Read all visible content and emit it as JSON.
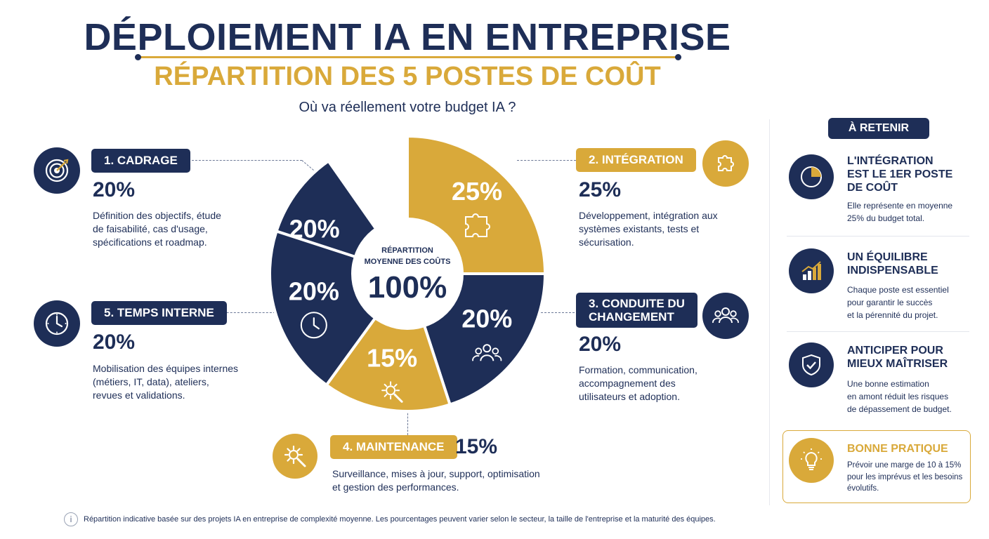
{
  "header": {
    "title": "DÉPLOIEMENT IA EN ENTREPRISE",
    "subtitle": "RÉPARTITION DES 5 POSTES DE COÛT",
    "question": "Où va réellement votre budget IA ?"
  },
  "colors": {
    "navy": "#1e2e57",
    "gold": "#d9a93a"
  },
  "pie_center": {
    "line1": "RÉPARTITION",
    "line2": "MOYENNE DES COÛTS",
    "total": "100%"
  },
  "chart_data": {
    "type": "pie",
    "categories": [
      "1. CADRAGE",
      "2. INTÉGRATION",
      "3. CONDUITE DU CHANGEMENT",
      "4. MAINTENANCE",
      "5. TEMPS INTERNE"
    ],
    "values": [
      20,
      25,
      20,
      15,
      20
    ],
    "colors": [
      "#1e2e57",
      "#d9a93a",
      "#1e2e57",
      "#d9a93a",
      "#1e2e57"
    ],
    "icons": [
      "target-icon",
      "puzzle-icon",
      "people-icon",
      "gear-wrench-icon",
      "clock-icon"
    ],
    "labels": [
      "20%",
      "25%",
      "20%",
      "15%",
      "20%"
    ]
  },
  "cards": [
    {
      "label": "1. CADRAGE",
      "pct": "20%",
      "desc": [
        "Définition des objectifs, étude",
        "de faisabilité, cas d'usage,",
        "spécifications et roadmap."
      ],
      "icon": "target-icon"
    },
    {
      "label": "2. INTÉGRATION",
      "pct": "25%",
      "desc": [
        "Développement, intégration aux",
        "systèmes existants, tests et",
        "sécurisation."
      ],
      "icon": "puzzle-icon"
    },
    {
      "label": [
        "3. CONDUITE DU",
        "CHANGEMENT"
      ],
      "pct": "20%",
      "desc": [
        "Formation, communication,",
        "accompagnement des",
        "utilisateurs et adoption."
      ],
      "icon": "people-icon"
    },
    {
      "label": "4. MAINTENANCE",
      "pct": "15%",
      "desc": [
        "Surveillance, mises à jour, support, optimisation",
        "et gestion des performances."
      ],
      "icon": "gear-wrench-icon"
    },
    {
      "label": "5. TEMPS INTERNE",
      "pct": "20%",
      "desc": [
        "Mobilisation des équipes internes",
        "(métiers, IT, data), ateliers,",
        "revues et validations."
      ],
      "icon": "clock-icon"
    }
  ],
  "retenir": {
    "badge": "À RETENIR",
    "items": [
      {
        "title": [
          "L'INTÉGRATION",
          "EST LE 1ER POSTE",
          "DE COÛT"
        ],
        "text": [
          "Elle représente en moyenne",
          "25% du budget total."
        ],
        "icon": "pie-chart-icon"
      },
      {
        "title": [
          "UN ÉQUILIBRE",
          "INDISPENSABLE"
        ],
        "text": [
          "Chaque poste est essentiel",
          "pour garantir le succès",
          "et la pérennité du projet."
        ],
        "icon": "growth-chart-icon"
      },
      {
        "title": [
          "ANTICIPER POUR",
          "MIEUX MAÎTRISER"
        ],
        "text": [
          "Une bonne estimation",
          "en amont réduit les risques",
          "de dépassement de budget."
        ],
        "icon": "shield-check-icon"
      },
      {
        "title": [
          "BONNE PRATIQUE"
        ],
        "text": [
          "Prévoir une marge de 10 à 15%",
          "pour les imprévus et les besoins",
          "évolutifs."
        ],
        "icon": "lightbulb-icon"
      }
    ]
  },
  "footer": {
    "icon": "info-icon",
    "text": "Répartition indicative basée sur des projets IA en entreprise de complexité moyenne. Les pourcentages peuvent varier selon le secteur, la taille de l'entreprise et la maturité des équipes."
  }
}
